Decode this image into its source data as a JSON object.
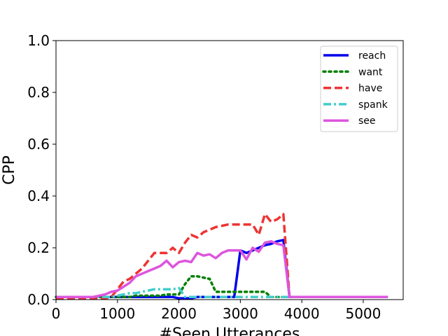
{
  "chart_data": {
    "type": "line",
    "title": "",
    "xlabel": "#Seen Utterances",
    "ylabel": "CPP",
    "xlim": [
      0,
      5650
    ],
    "ylim": [
      0,
      1.0
    ],
    "xticks": [
      0,
      1000,
      2000,
      3000,
      4000,
      5000
    ],
    "yticks": [
      0.0,
      0.2,
      0.4,
      0.6,
      0.8,
      1.0
    ],
    "ytick_labels": [
      "0.0",
      "0.2",
      "0.4",
      "0.6",
      "0.8",
      "1.0"
    ],
    "legend_position": "top-right",
    "grid": false,
    "x": [
      0,
      100,
      200,
      300,
      400,
      500,
      600,
      700,
      800,
      900,
      1000,
      1100,
      1200,
      1300,
      1400,
      1500,
      1600,
      1700,
      1800,
      1900,
      2000,
      2100,
      2200,
      2300,
      2400,
      2500,
      2600,
      2700,
      2800,
      2900,
      3000,
      3100,
      3200,
      3300,
      3400,
      3500,
      3600,
      3700,
      3800,
      3900,
      4000,
      4100,
      4200,
      4300,
      4400,
      4500,
      4600,
      4700,
      4800,
      4900,
      5000,
      5100,
      5200,
      5300,
      5400
    ],
    "series": [
      {
        "name": "reach",
        "color": "#0000ee",
        "dash": "solid",
        "values": [
          0.01,
          0.01,
          0.01,
          0.01,
          0.01,
          0.01,
          0.01,
          0.01,
          0.01,
          0.01,
          0.01,
          0.01,
          0.01,
          0.01,
          0.01,
          0.01,
          0.01,
          0.01,
          0.01,
          0.01,
          0.005,
          0.005,
          0.005,
          0.01,
          0.01,
          0.01,
          0.01,
          0.01,
          0.01,
          0.01,
          0.19,
          0.18,
          0.19,
          0.2,
          0.21,
          0.215,
          0.225,
          0.23,
          0.01,
          0.01,
          0.01,
          0.01,
          0.01,
          0.01,
          0.01,
          0.01,
          0.01,
          0.01,
          0.01,
          0.01,
          0.01,
          0.01,
          0.01,
          0.01,
          0.01
        ]
      },
      {
        "name": "want",
        "color": "#008000",
        "dash": "dotted",
        "values": [
          0.01,
          0.01,
          0.01,
          0.01,
          0.01,
          0.01,
          0.01,
          0.01,
          0.01,
          0.01,
          0.01,
          0.01,
          0.01,
          0.015,
          0.015,
          0.015,
          0.015,
          0.015,
          0.02,
          0.02,
          0.02,
          0.06,
          0.09,
          0.09,
          0.085,
          0.08,
          0.03,
          0.03,
          0.03,
          0.03,
          0.03,
          0.03,
          0.03,
          0.03,
          0.03,
          0.01,
          0.01,
          0.01,
          0.01,
          0.01,
          0.01,
          0.01,
          0.01,
          0.01,
          0.01,
          0.01,
          0.01,
          0.01,
          0.01,
          0.01,
          0.01,
          0.01,
          0.01,
          0.01,
          0.01
        ]
      },
      {
        "name": "have",
        "color": "#ee3333",
        "dash": "dashed",
        "values": [
          0.005,
          0.005,
          0.005,
          0.005,
          0.005,
          0.005,
          0.005,
          0.005,
          0.005,
          0.01,
          0.04,
          0.07,
          0.08,
          0.1,
          0.12,
          0.15,
          0.18,
          0.18,
          0.18,
          0.2,
          0.18,
          0.22,
          0.25,
          0.24,
          0.26,
          0.27,
          0.28,
          0.285,
          0.29,
          0.29,
          0.29,
          0.29,
          0.29,
          0.25,
          0.33,
          0.3,
          0.31,
          0.33,
          0.01,
          0.01,
          0.01,
          0.01,
          0.01,
          0.01,
          0.01,
          0.01,
          0.01,
          0.01,
          0.01,
          0.01,
          0.01,
          0.01,
          0.01,
          0.01,
          0.01
        ]
      },
      {
        "name": "spank",
        "color": "#44cccc",
        "dash": "dashdot",
        "values": [
          0.01,
          0.01,
          0.01,
          0.01,
          0.01,
          0.01,
          0.01,
          0.01,
          0.01,
          0.01,
          0.015,
          0.02,
          0.025,
          0.025,
          0.03,
          0.035,
          0.04,
          0.04,
          0.04,
          0.04,
          0.045,
          0.01,
          0.01,
          0.01,
          0.01,
          0.01,
          0.01,
          0.01,
          0.01,
          0.01,
          0.01,
          0.01,
          0.01,
          0.01,
          0.01,
          0.01,
          0.01,
          0.01,
          0.01,
          0.01,
          0.01,
          0.01,
          0.01,
          0.01,
          0.01,
          0.01,
          0.01,
          0.01,
          0.01,
          0.01,
          0.01,
          0.01,
          0.01,
          0.01,
          0.01
        ]
      },
      {
        "name": "see",
        "color": "#dd55dd",
        "dash": "solid",
        "values": [
          0.01,
          0.01,
          0.01,
          0.01,
          0.01,
          0.01,
          0.01,
          0.015,
          0.02,
          0.03,
          0.035,
          0.05,
          0.065,
          0.09,
          0.1,
          0.11,
          0.12,
          0.13,
          0.15,
          0.125,
          0.145,
          0.15,
          0.145,
          0.18,
          0.17,
          0.175,
          0.16,
          0.18,
          0.19,
          0.19,
          0.19,
          0.155,
          0.2,
          0.185,
          0.22,
          0.225,
          0.215,
          0.21,
          0.01,
          0.01,
          0.01,
          0.01,
          0.01,
          0.01,
          0.01,
          0.01,
          0.01,
          0.01,
          0.01,
          0.01,
          0.01,
          0.01,
          0.01,
          0.01,
          0.01
        ]
      }
    ]
  }
}
